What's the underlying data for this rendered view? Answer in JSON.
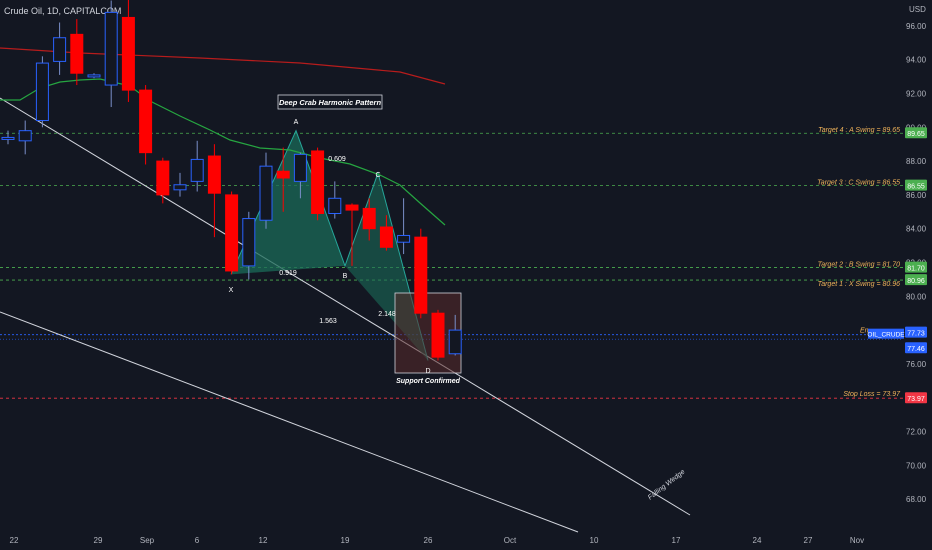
{
  "header": {
    "title": "Crude Oil, 1D, CAPITALCOM",
    "currency": "USD"
  },
  "chart_data": {
    "type": "candlestick",
    "title": "Crude Oil, 1D, CAPITALCOM",
    "ylabel": "USD",
    "ylim": [
      66.5,
      98.5
    ],
    "y_ticks": [
      "96.00",
      "94.00",
      "92.00",
      "90.00",
      "88.00",
      "86.00",
      "84.00",
      "82.00",
      "80.00",
      "78.00",
      "76.00",
      "74.00",
      "72.00",
      "70.00",
      "68.00"
    ],
    "x_ticks": [
      "22",
      "29",
      "Sep",
      "6",
      "12",
      "19",
      "26",
      "Oct",
      "10",
      "17",
      "24",
      "27",
      "Nov"
    ],
    "candles": [
      {
        "o": 89.3,
        "h": 89.8,
        "l": 89.0,
        "c": 89.4
      },
      {
        "o": 89.2,
        "h": 90.4,
        "l": 88.4,
        "c": 89.8
      },
      {
        "o": 90.4,
        "h": 94.2,
        "l": 90.0,
        "c": 93.8
      },
      {
        "o": 93.9,
        "h": 96.2,
        "l": 93.1,
        "c": 95.3
      },
      {
        "o": 95.5,
        "h": 96.4,
        "l": 92.5,
        "c": 93.2
      },
      {
        "o": 93.1,
        "h": 93.2,
        "l": 92.9,
        "c": 93.1
      },
      {
        "o": 92.5,
        "h": 97.5,
        "l": 91.2,
        "c": 96.8
      },
      {
        "o": 96.5,
        "h": 98.3,
        "l": 91.5,
        "c": 92.2
      },
      {
        "o": 92.2,
        "h": 92.5,
        "l": 87.8,
        "c": 88.5
      },
      {
        "o": 88.0,
        "h": 88.2,
        "l": 85.5,
        "c": 86.0
      },
      {
        "o": 86.3,
        "h": 87.3,
        "l": 85.9,
        "c": 86.6
      },
      {
        "o": 86.8,
        "h": 89.2,
        "l": 86.2,
        "c": 88.1
      },
      {
        "o": 88.3,
        "h": 89.0,
        "l": 83.5,
        "c": 86.1
      },
      {
        "o": 86.0,
        "h": 86.2,
        "l": 81.3,
        "c": 81.5
      },
      {
        "o": 81.8,
        "h": 85.0,
        "l": 81.0,
        "c": 84.6
      },
      {
        "o": 84.5,
        "h": 88.5,
        "l": 84.0,
        "c": 87.7
      },
      {
        "o": 87.4,
        "h": 88.8,
        "l": 85.0,
        "c": 87.0
      },
      {
        "o": 86.8,
        "h": 88.5,
        "l": 85.8,
        "c": 88.4
      },
      {
        "o": 88.6,
        "h": 88.8,
        "l": 84.5,
        "c": 84.9
      },
      {
        "o": 84.9,
        "h": 86.8,
        "l": 84.6,
        "c": 85.8
      },
      {
        "o": 85.4,
        "h": 85.5,
        "l": 81.8,
        "c": 85.1
      },
      {
        "o": 85.2,
        "h": 85.8,
        "l": 83.3,
        "c": 84.0
      },
      {
        "o": 84.1,
        "h": 84.8,
        "l": 82.7,
        "c": 82.9
      },
      {
        "o": 83.2,
        "h": 85.8,
        "l": 82.5,
        "c": 83.6
      },
      {
        "o": 83.5,
        "h": 84.0,
        "l": 78.7,
        "c": 79.0
      },
      {
        "o": 79.0,
        "h": 79.2,
        "l": 76.2,
        "c": 76.4
      },
      {
        "o": 76.6,
        "h": 78.9,
        "l": 76.5,
        "c": 78.0
      }
    ],
    "indicators": {
      "ma_red": {
        "color": "#b71c1c"
      },
      "ma_green": {
        "color": "#26a641"
      }
    },
    "pattern": {
      "label": "Deep Crab Harmonic Pattern",
      "points": {
        "X": "X",
        "A": "A",
        "B": "B",
        "C": "C",
        "D": "D"
      },
      "ratios": {
        "xa_b": "0.919",
        "ab_c": "0.609",
        "bc_d": "2.148",
        "xa_d": "1.563"
      }
    },
    "targets": [
      {
        "label": "Target 4 : A Swing = 89.65",
        "price": 89.65,
        "tag": "89.65"
      },
      {
        "label": "Target 3 : C Swing = 86.55",
        "price": 86.55,
        "tag": "86.55"
      },
      {
        "label": "Target 2 : B Swing = 81.70",
        "price": 81.7,
        "tag": "81.70"
      },
      {
        "label": "Target 1 : X Swing = 80.96",
        "price": 80.96,
        "tag": "80.96"
      }
    ],
    "entry": {
      "label": "En",
      "symbol": "OIL_CRUDE",
      "price": 77.73,
      "tag": "77.73"
    },
    "current": {
      "price": 77.46,
      "tag": "77.46"
    },
    "stop_loss": {
      "label": "Stop Loss = 73.97",
      "price": 73.97,
      "tag": "73.97"
    },
    "support_label": "Support Confirmed",
    "wedge_label": "Falling Wedge",
    "colors": {
      "bg": "#131722",
      "bull": "#2962ff",
      "bear": "#ff0000",
      "target": "#4caf50",
      "stop": "#f23645",
      "entry": "#2962ff",
      "label_text": "#f0b35a"
    }
  }
}
